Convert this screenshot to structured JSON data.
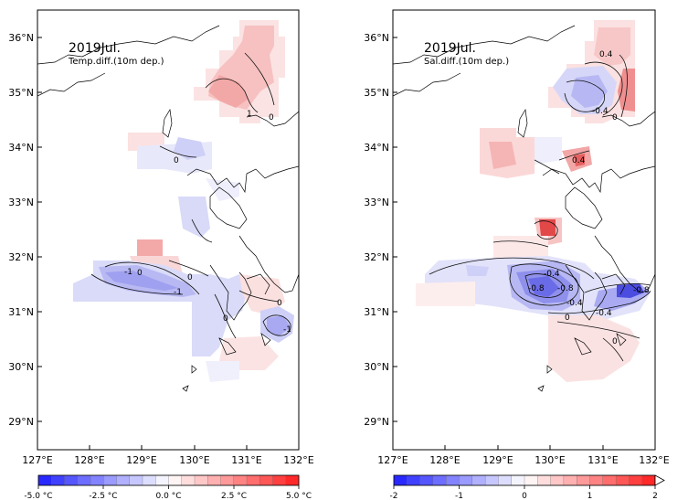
{
  "axes": {
    "lat_labels": [
      "36°N",
      "35°N",
      "34°N",
      "33°N",
      "32°N",
      "31°N",
      "30°N",
      "29°N"
    ],
    "lon_labels": [
      "127°E",
      "128°E",
      "129°E",
      "130°E",
      "131°E",
      "132°E"
    ]
  },
  "panels": [
    {
      "id": "temp",
      "title": "2019Jul.",
      "subtitle": "Temp.diff.(10m dep.)",
      "contour_labels": [
        "1",
        "0",
        "0",
        "-1",
        "0",
        "0",
        "-1",
        "0",
        "0",
        "-1"
      ],
      "colorbar": {
        "labels": [
          "-5.0 °C",
          "-2.5 °C",
          "0.0 °C",
          "2.5 °C",
          "5.0 °C"
        ],
        "min_color": "#1e1eff",
        "max_color": "#ff1e1e"
      }
    },
    {
      "id": "sal",
      "title": "2019Jul.",
      "subtitle": "Sal.diff.(10m dep.)",
      "contour_labels": [
        "0.4",
        "-0.4",
        "0",
        "0.4",
        "-0.4",
        "-0.8",
        "-0.8",
        "-0.4",
        "-0.4",
        "0",
        "-0.8",
        "0"
      ],
      "colorbar": {
        "labels": [
          "-2",
          "-1",
          "0",
          "1",
          "2"
        ],
        "min_color": "#1e1eff",
        "max_color": "#ff1e1e"
      }
    }
  ]
}
